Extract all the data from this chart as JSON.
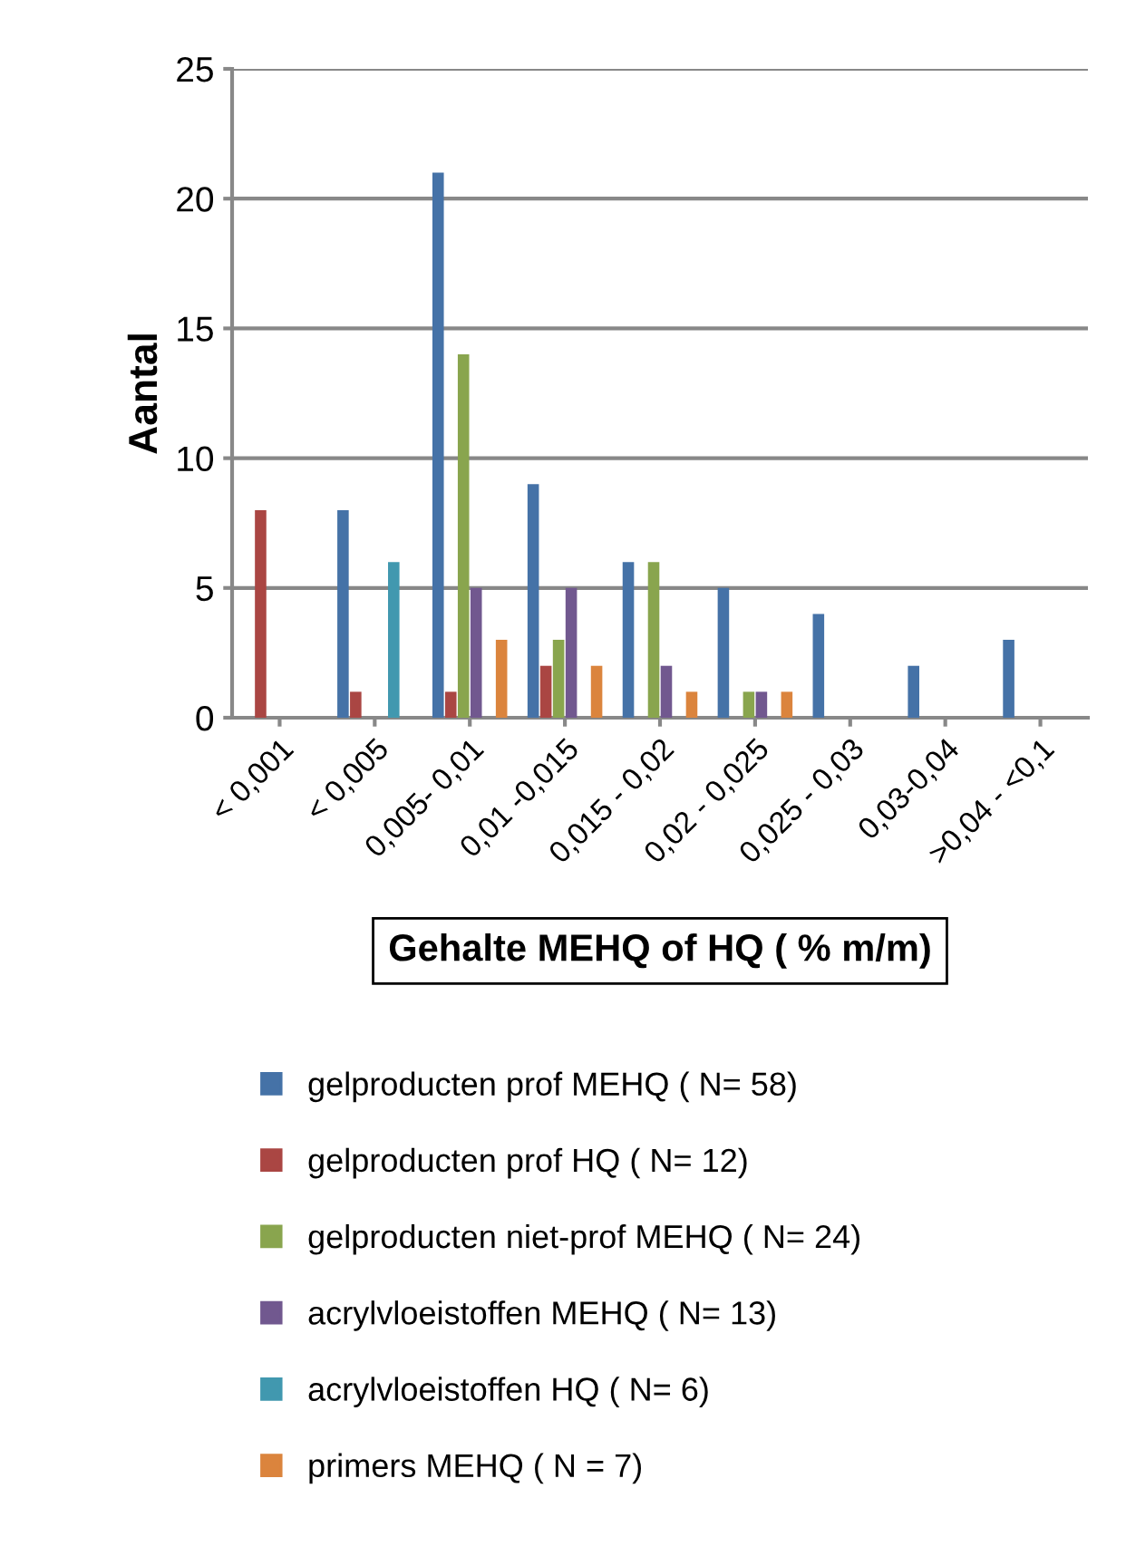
{
  "chart_data": {
    "type": "bar",
    "categories": [
      "< 0,001",
      "< 0,005",
      "0,005- 0,01",
      "0,01 -0,015",
      "0,015 - 0,02",
      "0,02 - 0,025",
      "0,025 - 0,03",
      "0,03-0,04",
      ">0,04 - <0,1"
    ],
    "series": [
      {
        "name": "gelproducten prof MEHQ ( N= 58)",
        "color": "#4572a7",
        "values": [
          0,
          8,
          21,
          9,
          6,
          5,
          4,
          2,
          3
        ]
      },
      {
        "name": "gelproducten prof HQ ( N= 12)",
        "color": "#aa4643",
        "values": [
          8,
          1,
          1,
          2,
          0,
          0,
          0,
          0,
          0
        ]
      },
      {
        "name": "gelproducten niet-prof MEHQ ( N= 24)",
        "color": "#89a54e",
        "values": [
          0,
          0,
          14,
          3,
          6,
          1,
          0,
          0,
          0
        ]
      },
      {
        "name": "acrylvloeistoffen MEHQ ( N= 13)",
        "color": "#71588f",
        "values": [
          0,
          0,
          5,
          5,
          2,
          1,
          0,
          0,
          0
        ]
      },
      {
        "name": "acrylvloeistoffen HQ ( N= 6)",
        "color": "#4198af",
        "values": [
          0,
          6,
          0,
          0,
          0,
          0,
          0,
          0,
          0
        ]
      },
      {
        "name": "primers MEHQ ( N = 7)",
        "color": "#db843d",
        "values": [
          0,
          0,
          3,
          2,
          1,
          1,
          0,
          0,
          0
        ]
      }
    ],
    "xlabel": "Gehalte MEHQ of HQ ( % m/m)",
    "ylabel": "Aantal",
    "ylim": [
      0,
      25
    ],
    "yticks": [
      0,
      5,
      10,
      15,
      20,
      25
    ],
    "grid": "y",
    "legend": "bottom"
  }
}
